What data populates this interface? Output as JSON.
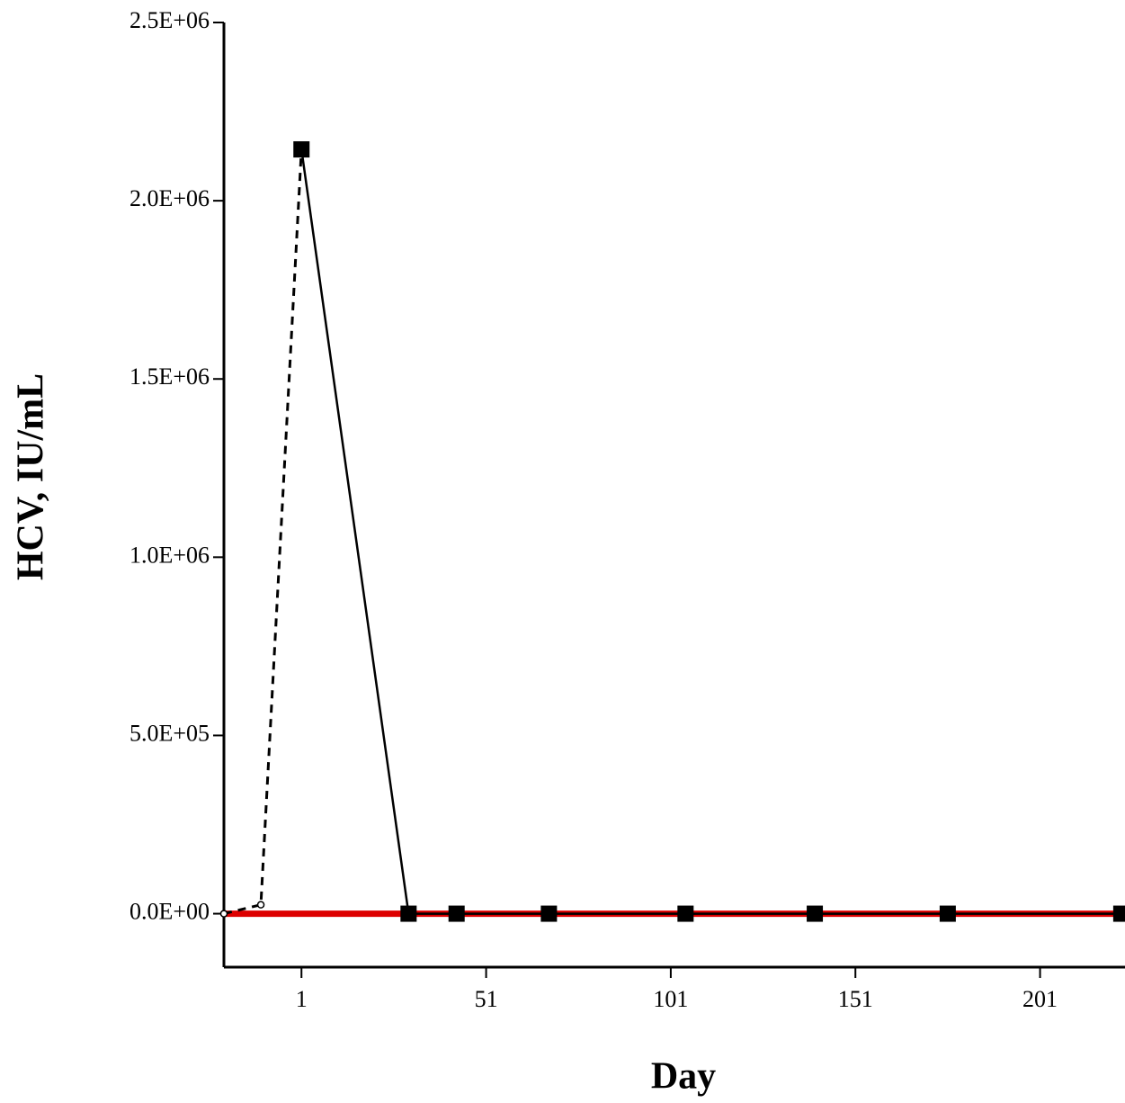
{
  "chart_data": {
    "type": "line",
    "x_label": "Day",
    "y_label": "HCV, IU/mL",
    "xlim": [
      -20,
      224
    ],
    "ylim": [
      -150000,
      2500000
    ],
    "xticks": [
      1,
      51,
      101,
      151,
      201
    ],
    "yticks": [
      {
        "value": 0,
        "label": "0.0E+00"
      },
      {
        "value": 500000,
        "label": "5.0E+05"
      },
      {
        "value": 1000000,
        "label": "1.0E+06"
      },
      {
        "value": 1500000,
        "label": "1.5E+06"
      },
      {
        "value": 2000000,
        "label": "2.0E+06"
      },
      {
        "value": 2500000,
        "label": "2.5E+06"
      }
    ],
    "series": [
      {
        "color": "#dd0000",
        "width": 7,
        "dashed": false,
        "marker": "none",
        "x": [
          -20,
          224
        ],
        "values": [
          0,
          0
        ]
      },
      {
        "color": "#000000",
        "width": 3,
        "dashed": true,
        "marker": "dot",
        "x": [
          -20,
          -10,
          1
        ],
        "values": [
          0,
          25000,
          2144000
        ]
      },
      {
        "color": "#000000",
        "width": 2.5,
        "dashed": false,
        "marker": "square",
        "x": [
          1,
          30,
          43,
          68,
          105,
          140,
          176,
          223
        ],
        "values": [
          2144000,
          0,
          0,
          0,
          0,
          0,
          0,
          0
        ]
      }
    ]
  }
}
